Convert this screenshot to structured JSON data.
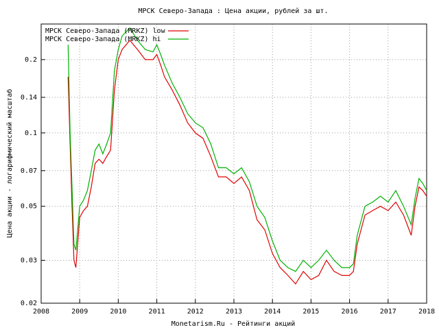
{
  "chart_data": {
    "type": "line",
    "title": "МРСК Северо-Запада : Цена акции, рублей за шт.",
    "x_label": "Monetarism.Ru - Рейтинги акций",
    "y_label": "Цена акции - логарифмический масштаб",
    "log_y": true,
    "grid": true,
    "legend": "top-left",
    "x": [
      2008.7,
      2008.75,
      2008.8,
      2008.85,
      2008.9,
      2009.0,
      2009.1,
      2009.2,
      2009.3,
      2009.4,
      2009.5,
      2009.6,
      2009.7,
      2009.8,
      2009.9,
      2010.0,
      2010.1,
      2010.3,
      2010.5,
      2010.7,
      2010.9,
      2011.0,
      2011.1,
      2011.2,
      2011.4,
      2011.6,
      2011.8,
      2012.0,
      2012.2,
      2012.4,
      2012.6,
      2012.8,
      2013.0,
      2013.2,
      2013.4,
      2013.6,
      2013.8,
      2014.0,
      2014.2,
      2014.4,
      2014.6,
      2014.8,
      2015.0,
      2015.2,
      2015.4,
      2015.6,
      2015.8,
      2016.0,
      2016.1,
      2016.2,
      2016.4,
      2016.6,
      2016.8,
      2017.0,
      2017.2,
      2017.4,
      2017.6,
      2017.7,
      2017.8,
      2017.9,
      2018.0
    ],
    "series": [
      {
        "name": "МРСК Северо-Запада (MRKZ) low",
        "color": "#e00000",
        "values": [
          0.17,
          0.09,
          0.05,
          0.03,
          0.028,
          0.045,
          0.048,
          0.05,
          0.06,
          0.075,
          0.078,
          0.075,
          0.08,
          0.085,
          0.15,
          0.2,
          0.22,
          0.24,
          0.22,
          0.2,
          0.2,
          0.21,
          0.19,
          0.17,
          0.15,
          0.13,
          0.11,
          0.1,
          0.095,
          0.08,
          0.066,
          0.066,
          0.062,
          0.066,
          0.058,
          0.044,
          0.04,
          0.032,
          0.028,
          0.026,
          0.024,
          0.027,
          0.025,
          0.026,
          0.03,
          0.027,
          0.026,
          0.026,
          0.027,
          0.035,
          0.046,
          0.048,
          0.05,
          0.048,
          0.052,
          0.046,
          0.038,
          0.05,
          0.06,
          0.058,
          0.055
        ]
      },
      {
        "name": "МРСК Северо-Запада (MRKZ) hi",
        "color": "#00b000",
        "values": [
          0.23,
          0.1,
          0.06,
          0.035,
          0.033,
          0.05,
          0.053,
          0.058,
          0.07,
          0.085,
          0.09,
          0.082,
          0.09,
          0.1,
          0.18,
          0.22,
          0.25,
          0.27,
          0.24,
          0.22,
          0.215,
          0.23,
          0.21,
          0.19,
          0.16,
          0.14,
          0.12,
          0.11,
          0.105,
          0.09,
          0.072,
          0.072,
          0.068,
          0.072,
          0.063,
          0.05,
          0.045,
          0.036,
          0.03,
          0.028,
          0.027,
          0.03,
          0.028,
          0.03,
          0.033,
          0.03,
          0.028,
          0.028,
          0.029,
          0.038,
          0.05,
          0.052,
          0.055,
          0.052,
          0.058,
          0.05,
          0.042,
          0.054,
          0.065,
          0.062,
          0.058
        ]
      }
    ],
    "xlim": [
      2008,
      2018
    ],
    "xticks": [
      2008,
      2009,
      2010,
      2011,
      2012,
      2013,
      2014,
      2015,
      2016,
      2017,
      2018
    ],
    "ylim": [
      0.02,
      0.28
    ],
    "yticks": [
      0.02,
      0.03,
      0.05,
      0.07,
      0.1,
      0.14,
      0.2
    ]
  }
}
